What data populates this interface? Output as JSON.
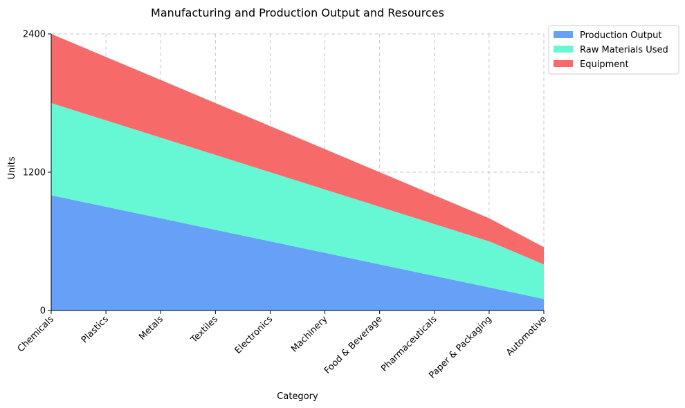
{
  "chart_data": {
    "type": "area",
    "stacked": true,
    "title": "Manufacturing and Production Output and Resources",
    "xlabel": "Category",
    "ylabel": "Units",
    "categories": [
      "Chemicals",
      "Plastics",
      "Metals",
      "Textiles",
      "Electronics",
      "Machinery",
      "Food & Beverage",
      "Pharmaceuticals",
      "Paper & Packaging",
      "Automotive"
    ],
    "series": [
      {
        "name": "Production Output",
        "color": "#66a0f7",
        "values": [
          1000,
          900,
          800,
          700,
          600,
          500,
          400,
          300,
          200,
          100
        ]
      },
      {
        "name": "Raw Materials Used",
        "color": "#66f7d4",
        "values": [
          800,
          750,
          700,
          650,
          600,
          550,
          500,
          450,
          400,
          300
        ]
      },
      {
        "name": "Equipment",
        "color": "#f76a6a",
        "values": [
          600,
          550,
          500,
          450,
          400,
          350,
          300,
          250,
          200,
          150
        ]
      }
    ],
    "ylim": [
      0,
      2400
    ],
    "yticks": [
      0,
      1200,
      2400
    ],
    "grid": true,
    "legend_position": "outside-top-right"
  }
}
